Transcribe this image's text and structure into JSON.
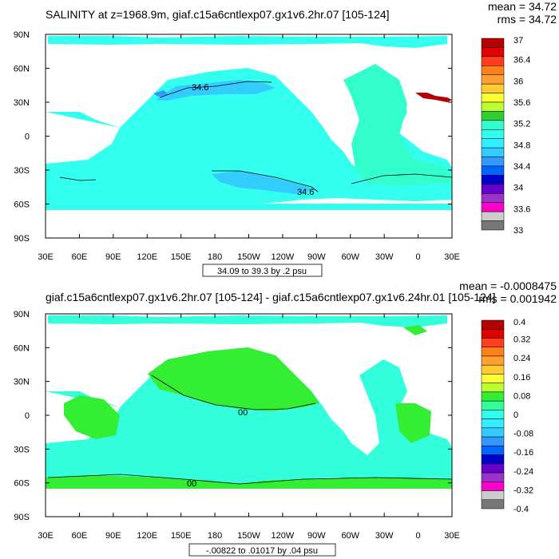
{
  "chart_data": [
    {
      "type": "heatmap",
      "title": "SALINITY at z=1968.9m, giaf.c15a6cntlexp07.gx1v6.2hr.07 [105-124]",
      "stats": {
        "mean": "mean = 34.72",
        "rms": "rms = 34.72"
      },
      "range_note": "34.09 to 39.3 by .2 psu",
      "x_tick_labels": [
        "30E",
        "60E",
        "90E",
        "120E",
        "150E",
        "180",
        "150W",
        "120W",
        "90W",
        "60W",
        "30W",
        "0",
        "30E"
      ],
      "x_ticks_deg": [
        30,
        60,
        90,
        120,
        150,
        180,
        210,
        240,
        270,
        300,
        330,
        360,
        390
      ],
      "y_tick_labels": [
        "90N",
        "60N",
        "30N",
        "0",
        "30S",
        "60S",
        "90S"
      ],
      "y_ticks_deg": [
        90,
        60,
        30,
        0,
        -30,
        -60,
        -90
      ],
      "xlim": [
        30,
        390
      ],
      "ylim": [
        -90,
        90
      ],
      "colorbar_labels": [
        "37",
        "36.4",
        "36",
        "35.6",
        "35.2",
        "34.8",
        "34.4",
        "34",
        "33.6",
        "33"
      ],
      "colorbar_colors": [
        "#b40000",
        "#e00000",
        "#ff3c1e",
        "#ff7f1a",
        "#ffa033",
        "#ffcc33",
        "#ffff33",
        "#bbff33",
        "#33cc33",
        "#33ffcc",
        "#33ffee",
        "#33eeff",
        "#33ccff",
        "#3399ff",
        "#0066ff",
        "#0000cc",
        "#6600cc",
        "#9933cc",
        "#ff00cc",
        "#cccccc",
        "#777777"
      ],
      "background_color": "#00f0e8",
      "contour_labels": [
        "34.6",
        "34.6"
      ]
    },
    {
      "type": "heatmap",
      "title": "giaf.c15a6cntlexp07.gx1v6.2hr.07 [105-124] - giaf.c15a6cntlexp07.gx1v6.24hr.01 [105-124]",
      "stats": {
        "mean": "mean = -0.0008475",
        "rms": "rms = 0.001942"
      },
      "range_note": "-.00822 to .01017 by .04 psu",
      "x_tick_labels": [
        "30E",
        "60E",
        "90E",
        "120E",
        "150E",
        "180",
        "150W",
        "120W",
        "90W",
        "60W",
        "30W",
        "0",
        "30E"
      ],
      "x_ticks_deg": [
        30,
        60,
        90,
        120,
        150,
        180,
        210,
        240,
        270,
        300,
        330,
        360,
        390
      ],
      "y_tick_labels": [
        "90N",
        "60N",
        "30N",
        "0",
        "30S",
        "60S",
        "90S"
      ],
      "y_ticks_deg": [
        90,
        60,
        30,
        0,
        -30,
        -60,
        -90
      ],
      "xlim": [
        30,
        390
      ],
      "ylim": [
        -90,
        90
      ],
      "colorbar_labels": [
        "0.4",
        "0.32",
        "0.24",
        "0.16",
        "0.08",
        "0",
        "-0.08",
        "-0.16",
        "-0.24",
        "-0.32",
        "-0.4"
      ],
      "colorbar_colors": [
        "#b40000",
        "#e00000",
        "#ff3c1e",
        "#ff7f1a",
        "#ffa033",
        "#ffcc33",
        "#ffff33",
        "#bbff33",
        "#33ee33",
        "#33ff99",
        "#33ffee",
        "#33eeff",
        "#33ccff",
        "#3399ff",
        "#0066ff",
        "#0000cc",
        "#6600cc",
        "#9933cc",
        "#ff00cc",
        "#cccccc",
        "#777777"
      ],
      "background_color": "#33ffdd",
      "contour_labels": [
        "00",
        "00"
      ]
    }
  ]
}
